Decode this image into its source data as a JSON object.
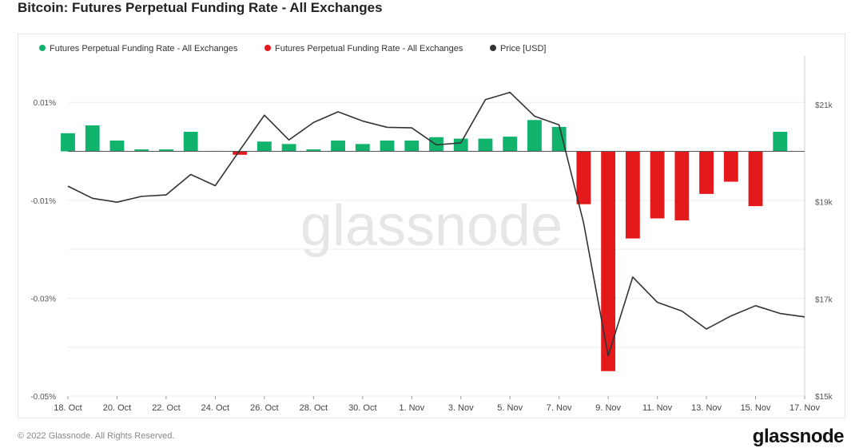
{
  "title": "Bitcoin: Futures Perpetual Funding Rate - All Exchanges",
  "watermark": "glassnode",
  "footer_text": "© 2022 Glassnode. All Rights Reserved.",
  "brand": "glassnode",
  "colors": {
    "positive": "#11b26c",
    "negative": "#e3191c",
    "price": "#333333",
    "grid": "#eeeeee"
  },
  "chart_data": {
    "type": "bar",
    "x": [
      "18. Oct",
      "19. Oct",
      "20. Oct",
      "21. Oct",
      "22. Oct",
      "23. Oct",
      "24. Oct",
      "25. Oct",
      "26. Oct",
      "27. Oct",
      "28. Oct",
      "29. Oct",
      "30. Oct",
      "31. Oct",
      "1. Nov",
      "2. Nov",
      "3. Nov",
      "4. Nov",
      "5. Nov",
      "6. Nov",
      "7. Nov",
      "8. Nov",
      "9. Nov",
      "10. Nov",
      "11. Nov",
      "12. Nov",
      "13. Nov",
      "14. Nov",
      "15. Nov",
      "16. Nov",
      "17. Nov"
    ],
    "x_tick_labels": [
      "18. Oct",
      "20. Oct",
      "22. Oct",
      "24. Oct",
      "26. Oct",
      "28. Oct",
      "30. Oct",
      "1. Nov",
      "3. Nov",
      "5. Nov",
      "7. Nov",
      "9. Nov",
      "11. Nov",
      "13. Nov",
      "15. Nov",
      "17. Nov"
    ],
    "series": [
      {
        "name": "Futures Perpetual Funding Rate - All Exchanges",
        "axis": "left",
        "values": [
          0.0037,
          0.0053,
          0.0022,
          0.0004,
          0.0004,
          0.004,
          0.0001,
          -0.0007,
          0.002,
          0.0015,
          0.0004,
          0.0022,
          0.0015,
          0.0022,
          0.0022,
          0.0029,
          0.0026,
          0.0026,
          0.003,
          0.0064,
          0.005,
          -0.0108,
          -0.0449,
          -0.0178,
          -0.0137,
          -0.0141,
          -0.0087,
          -0.0062,
          -0.0112,
          0.004,
          null
        ]
      },
      {
        "name": "Price [USD]",
        "axis": "right",
        "values": [
          19320,
          19070,
          18990,
          19110,
          19140,
          19560,
          19330,
          20060,
          20780,
          20270,
          20630,
          20850,
          20660,
          20530,
          20520,
          20170,
          20210,
          21100,
          21250,
          20760,
          20580,
          18560,
          15830,
          17450,
          16930,
          16750,
          16380,
          16650,
          16860,
          16700,
          16630
        ]
      }
    ],
    "legend": [
      "Futures Perpetual Funding Rate - All Exchanges",
      "Futures Perpetual Funding Rate - All Exchanges",
      "Price [USD]"
    ],
    "legend_placement": "top-left",
    "y_left": {
      "ticks": [
        "0.01%",
        "-0.01%",
        "-0.03%",
        "-0.05%"
      ],
      "tick_values": [
        0.01,
        -0.01,
        -0.03,
        -0.05
      ],
      "ylim": [
        -0.05,
        0.0195
      ]
    },
    "y_right": {
      "ticks": [
        "$21k",
        "$19k",
        "$17k",
        "$15k"
      ],
      "tick_values": [
        21000,
        19000,
        17000,
        15000
      ],
      "ylim": [
        15000,
        22000
      ]
    },
    "grid": true
  }
}
